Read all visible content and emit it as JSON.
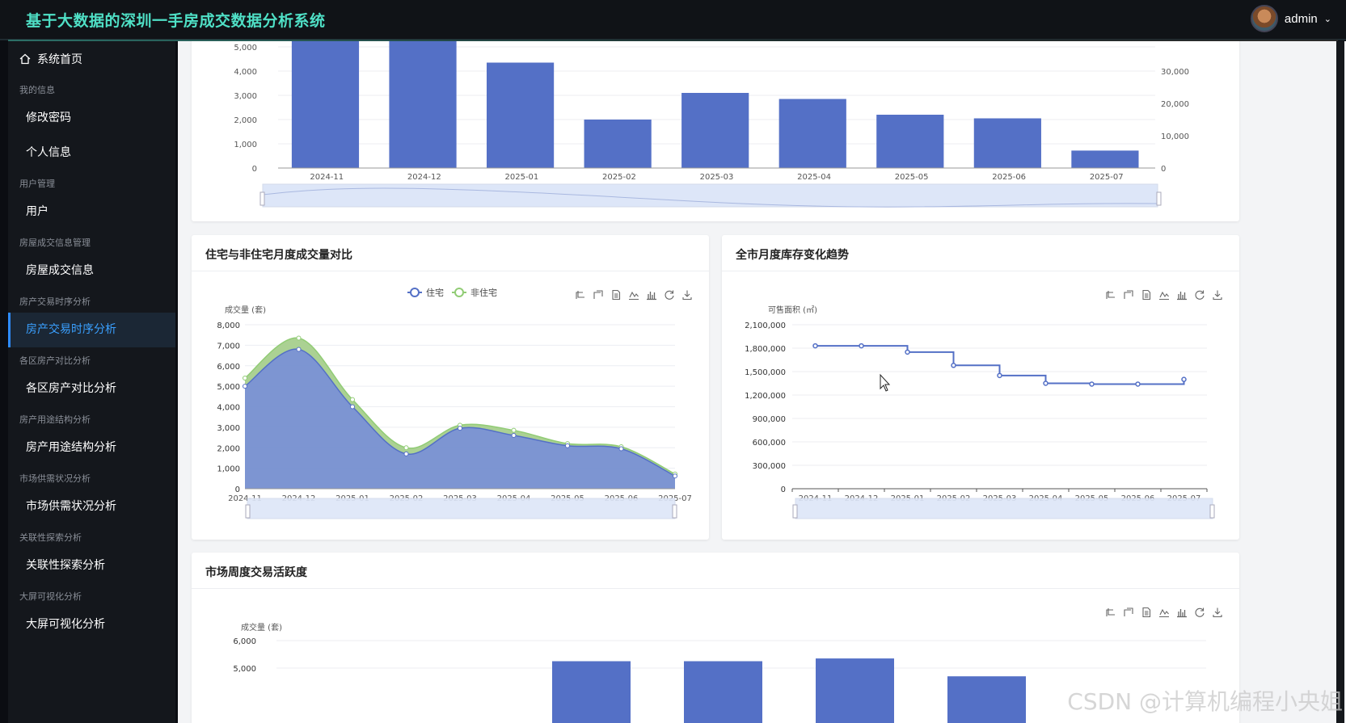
{
  "header": {
    "title": "基于大数据的深圳一手房成交数据分析系统",
    "user": "admin"
  },
  "sidebar": {
    "home": "系统首页",
    "groups": [
      {
        "label": "我的信息",
        "items": [
          "修改密码",
          "个人信息"
        ]
      },
      {
        "label": "用户管理",
        "items": [
          "用户"
        ]
      },
      {
        "label": "房屋成交信息管理",
        "items": [
          "房屋成交信息"
        ]
      },
      {
        "label": "房产交易时序分析",
        "items": [
          "房产交易时序分析"
        ]
      },
      {
        "label": "各区房产对比分析",
        "items": [
          "各区房产对比分析"
        ]
      },
      {
        "label": "房产用途结构分析",
        "items": [
          "房产用途结构分析"
        ]
      },
      {
        "label": "市场供需状况分析",
        "items": [
          "市场供需状况分析"
        ]
      },
      {
        "label": "关联性探索分析",
        "items": [
          "关联性探索分析"
        ]
      },
      {
        "label": "大屏可视化分析",
        "items": [
          "大屏可视化分析"
        ]
      }
    ],
    "active": "房产交易时序分析"
  },
  "colors": {
    "primary": "#5470c6",
    "secondary": "#91cc75",
    "accent": "#4fe0c6",
    "active_menu": "#3aa0ff"
  },
  "toolbar_icons": [
    "zoom-icon",
    "zoom-reset-icon",
    "data-view-icon",
    "line-switch-icon",
    "bar-switch-icon",
    "restore-icon",
    "save-image-icon"
  ],
  "watermark": "CSDN @计算机编程小央姐",
  "chart_data": [
    {
      "type": "bar",
      "title": "",
      "categories": [
        "2024-11",
        "2024-12",
        "2025-01",
        "2025-02",
        "2025-03",
        "2025-04",
        "2025-05",
        "2025-06",
        "2025-07"
      ],
      "values": [
        5300,
        5300,
        4350,
        2000,
        3100,
        2850,
        2200,
        2050,
        720
      ],
      "ylabel": "",
      "ylim": [
        0,
        5000
      ],
      "y_ticks": [
        "0",
        "1,000",
        "2,000",
        "3,000",
        "4,000",
        "5,000"
      ],
      "y2_ticks": [
        "0",
        "10,000",
        "20,000",
        "30,000"
      ],
      "dataZoom": true
    },
    {
      "type": "area",
      "title": "住宅与非住宅月度成交量对比",
      "categories": [
        "2024-11",
        "2024-12",
        "2025-01",
        "2025-02",
        "2025-03",
        "2025-04",
        "2025-05",
        "2025-06",
        "2025-07"
      ],
      "series": [
        {
          "name": "住宅",
          "values": [
            5000,
            6800,
            4000,
            1700,
            2950,
            2600,
            2100,
            1950,
            620
          ]
        },
        {
          "name": "非住宅",
          "values": [
            5400,
            7350,
            4350,
            2000,
            3100,
            2850,
            2200,
            2050,
            720
          ]
        }
      ],
      "stacked_display": true,
      "ylabel": "成交量 (套)",
      "ylim": [
        0,
        8000
      ],
      "y_ticks": [
        "0",
        "1,000",
        "2,000",
        "3,000",
        "4,000",
        "5,000",
        "6,000",
        "7,000",
        "8,000"
      ],
      "legend": "top-center",
      "dataZoom": true
    },
    {
      "type": "line",
      "title": "全市月度库存变化趋势",
      "step": true,
      "categories": [
        "2024-11",
        "2024-12",
        "2025-01",
        "2025-02",
        "2025-03",
        "2025-04",
        "2025-05",
        "2025-06",
        "2025-07"
      ],
      "values": [
        1830000,
        1830000,
        1750000,
        1580000,
        1450000,
        1350000,
        1340000,
        1340000,
        1400000
      ],
      "ylabel": "可售面积 (㎡)",
      "ylim": [
        0,
        2100000
      ],
      "y_ticks": [
        "0",
        "300,000",
        "600,000",
        "900,000",
        "1,200,000",
        "1,500,000",
        "1,800,000",
        "2,100,000"
      ],
      "dataZoom": true
    },
    {
      "type": "bar",
      "title": "市场周度交易活跃度",
      "ylabel": "成交量 (套)",
      "ylim": [
        0,
        6000
      ],
      "y_ticks": [
        "5,000",
        "6,000"
      ],
      "visible_values": [
        5250,
        5250,
        5350,
        4700
      ]
    }
  ]
}
